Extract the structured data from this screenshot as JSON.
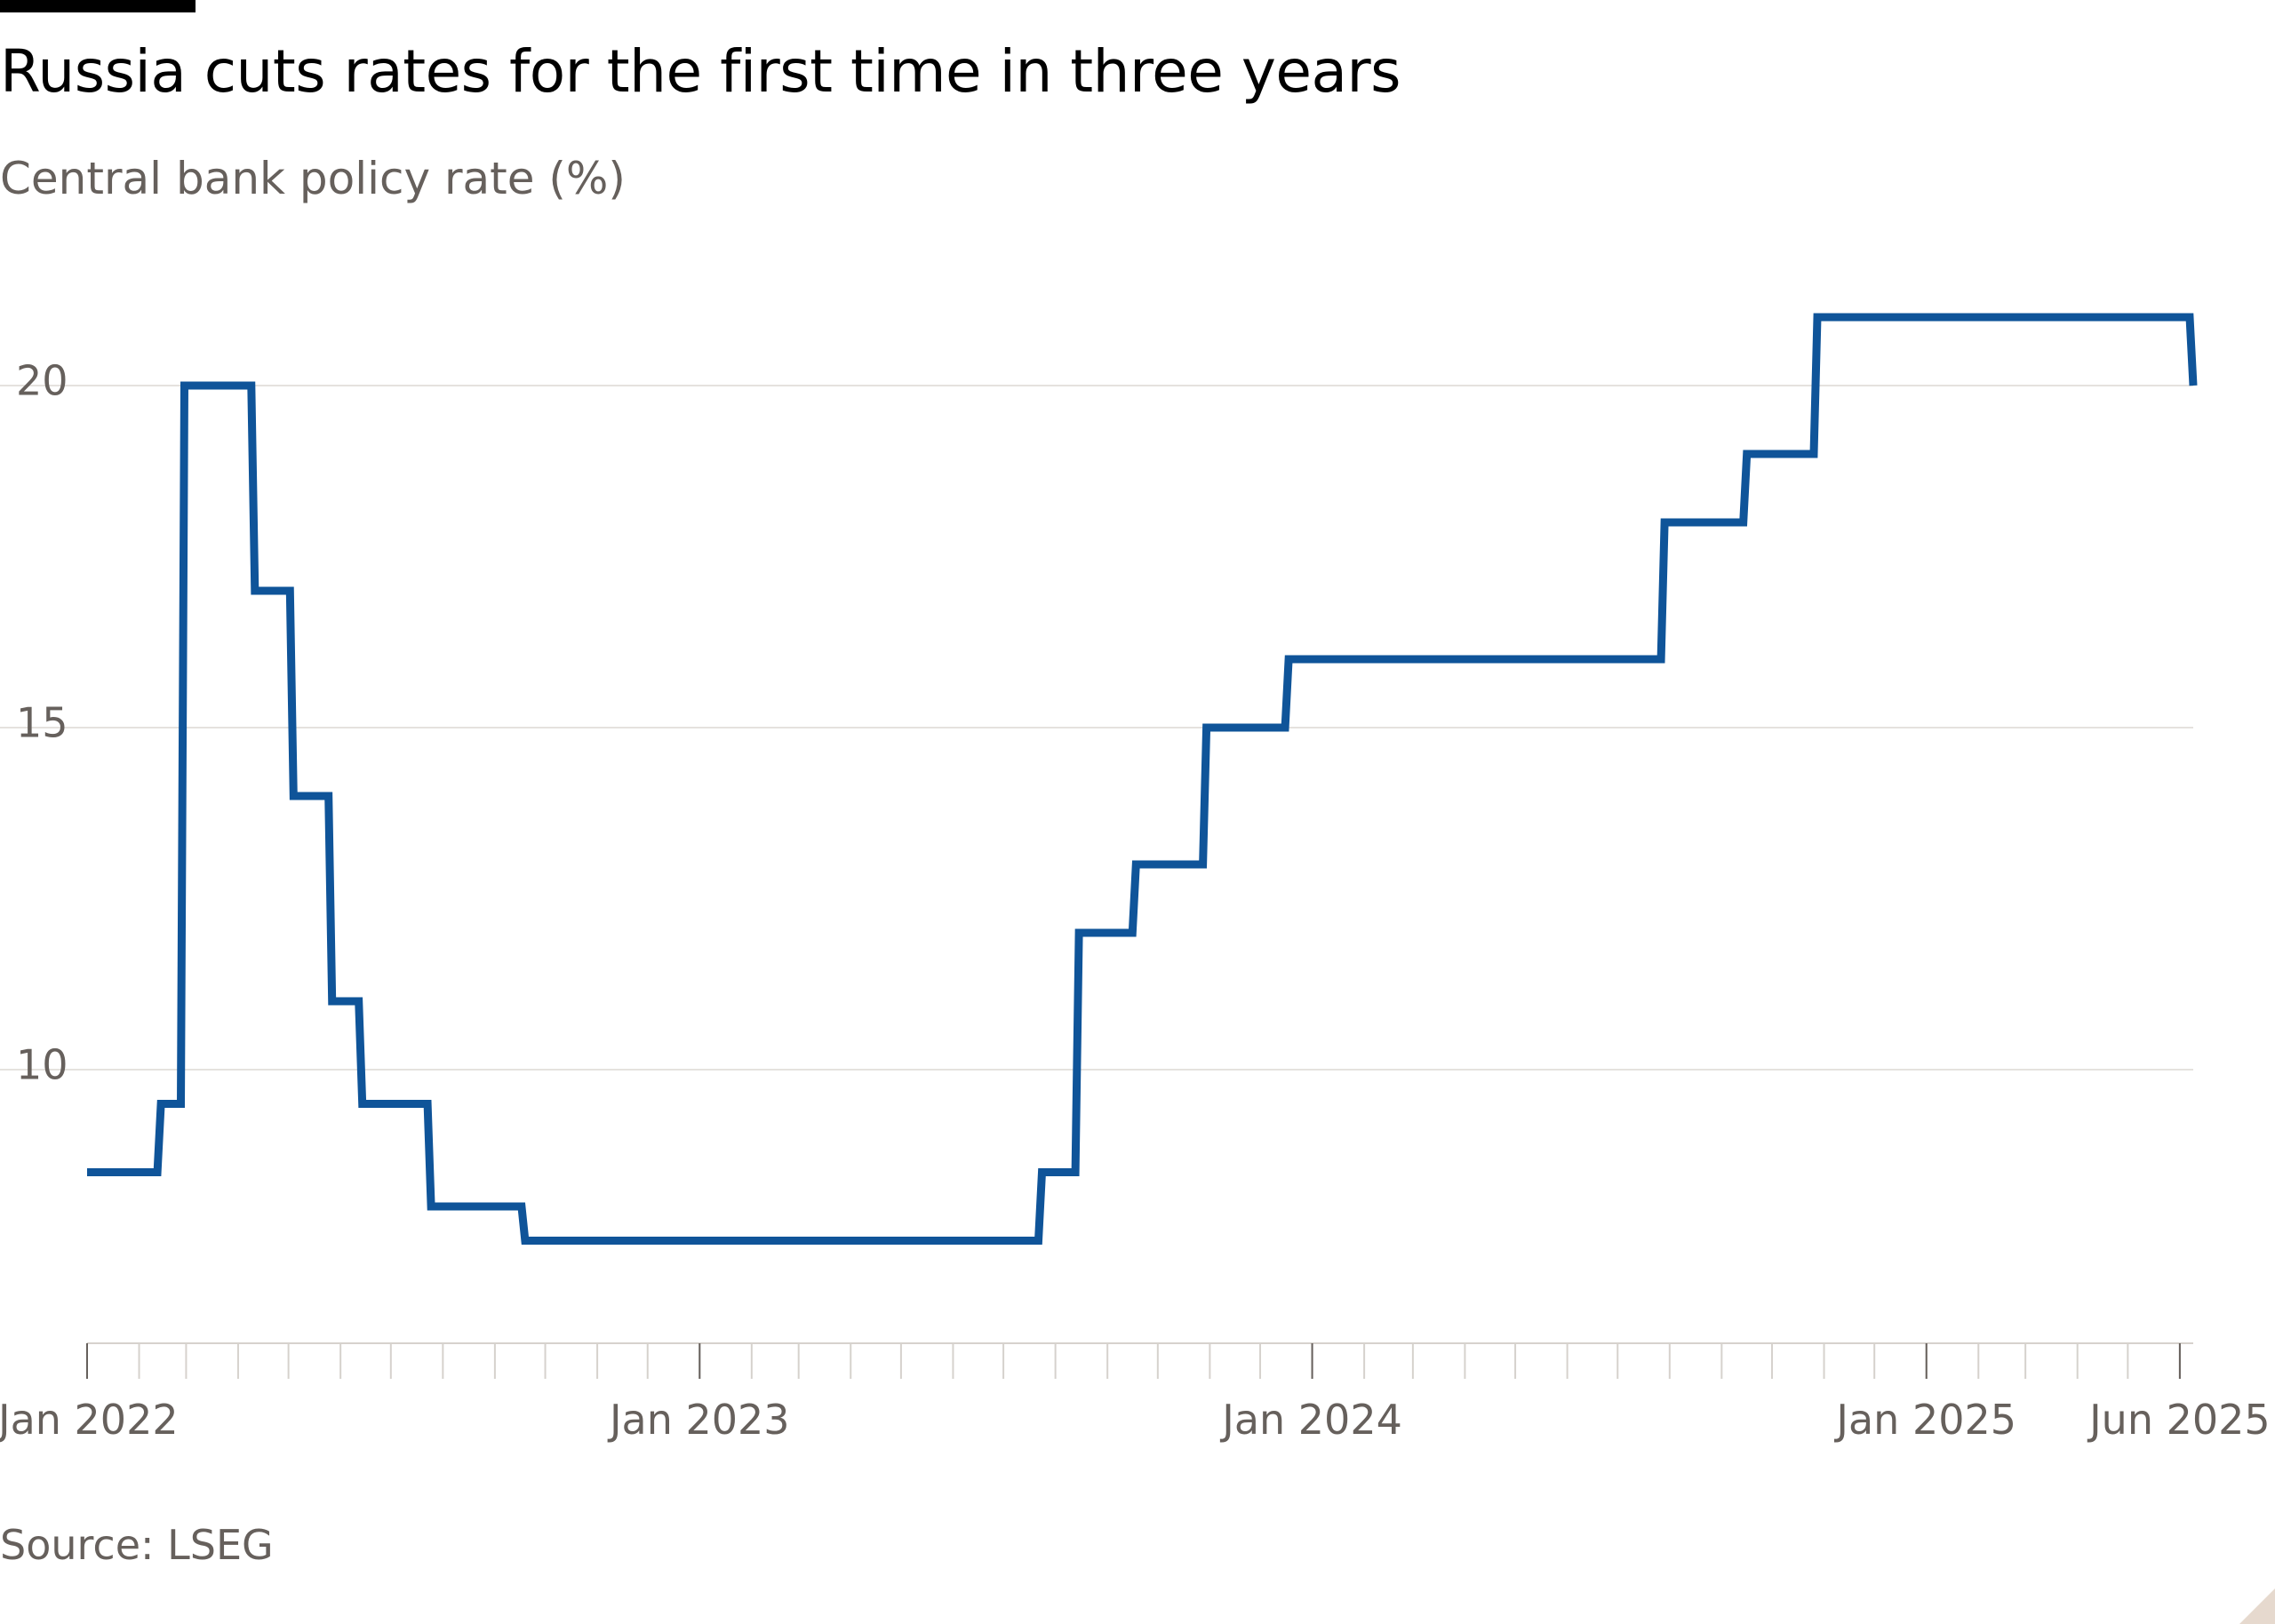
{
  "chart_data": {
    "type": "line",
    "title": "Russia cuts rates for the first time in three years",
    "subtitle": "Central bank policy rate (%)",
    "source": "Source: LSEG",
    "line_shape": "step",
    "series": [
      {
        "color": "#0f5499",
        "points": [
          {
            "x": "2022-01-01",
            "y": 8.5
          },
          {
            "x": "2022-02-14",
            "y": 9.5
          },
          {
            "x": "2022-02-28",
            "y": 20
          },
          {
            "x": "2022-04-11",
            "y": 17
          },
          {
            "x": "2022-05-04",
            "y": 14
          },
          {
            "x": "2022-05-27",
            "y": 11
          },
          {
            "x": "2022-06-14",
            "y": 9.5
          },
          {
            "x": "2022-07-25",
            "y": 8
          },
          {
            "x": "2022-09-19",
            "y": 7.5
          },
          {
            "x": "2023-07-24",
            "y": 8.5
          },
          {
            "x": "2023-08-15",
            "y": 12
          },
          {
            "x": "2023-09-18",
            "y": 13
          },
          {
            "x": "2023-10-30",
            "y": 15
          },
          {
            "x": "2023-12-18",
            "y": 16
          },
          {
            "x": "2024-07-29",
            "y": 18
          },
          {
            "x": "2024-09-16",
            "y": 19
          },
          {
            "x": "2024-10-28",
            "y": 21
          },
          {
            "x": "2025-06-09",
            "y": 20
          }
        ]
      }
    ],
    "x_range": [
      "2022-01-01",
      "2025-06-09"
    ],
    "ylim": [
      6,
      22
    ],
    "y_ticks": [
      10,
      15,
      20
    ],
    "y_tick_labels": [
      "10",
      "15",
      "20"
    ],
    "x_labels": [
      {
        "date": "2022-01-01",
        "label": "Jan 2022"
      },
      {
        "date": "2023-01-01",
        "label": "Jan 2023"
      },
      {
        "date": "2024-01-01",
        "label": "Jan 2024"
      },
      {
        "date": "2025-01-01",
        "label": "Jan 2025"
      },
      {
        "date": "2025-06-01",
        "label": "Jun 2025"
      }
    ],
    "x_minor_ticks": "monthly",
    "grid": true,
    "legend": "none"
  },
  "colors": {
    "line": "#0f5499",
    "gridline": "#e5e2de",
    "axis_text": "#66605c",
    "title": "#000000",
    "background": "#ffffff"
  }
}
